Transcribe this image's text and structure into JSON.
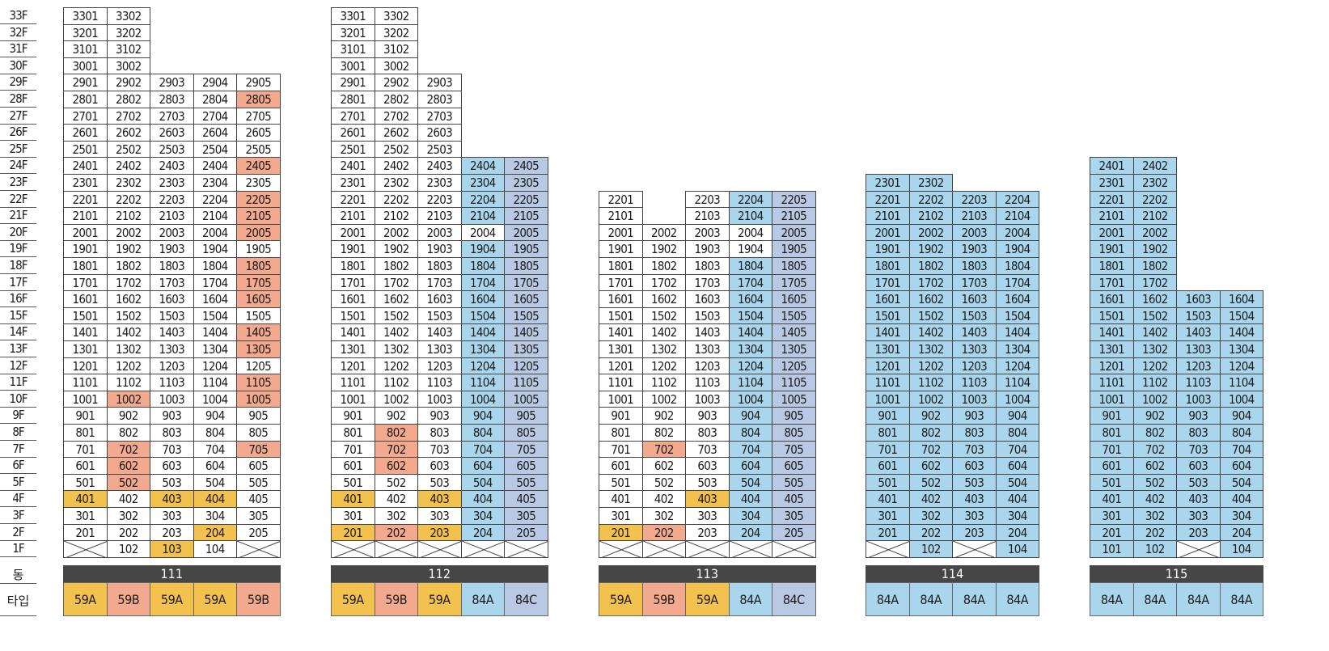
{
  "floor_labels": [
    "33F",
    "32F",
    "31F",
    "30F",
    "29F",
    "28F",
    "27F",
    "26F",
    "25F",
    "24F",
    "23F",
    "22F",
    "21F",
    "20F",
    "19F",
    "18F",
    "17F",
    "16F",
    "15F",
    "14F",
    "13F",
    "12F",
    "11F",
    "10F",
    "9F",
    "8F",
    "7F",
    "6F",
    "5F",
    "4F",
    "3F",
    "2F",
    "1F"
  ],
  "row_labels": {
    "building": "동",
    "type": "타입"
  },
  "colors": {
    "59A": "#f2c14e",
    "59B": "#f3a98d",
    "84A": "#a9d6ec",
    "84C": "#b9c9e3",
    "none": "#ffffff",
    "bar": "#464646"
  },
  "buildings": [
    {
      "name": "111",
      "types": [
        "59A",
        "59B",
        "59A",
        "59A",
        "59B"
      ],
      "columns": [
        {
          "min": 1,
          "max": 33
        },
        {
          "min": 1,
          "max": 33
        },
        {
          "min": 1,
          "max": 29
        },
        {
          "min": 1,
          "max": 29
        },
        {
          "min": 1,
          "max": 29
        }
      ],
      "pilotis": [
        "1-1",
        "1-5"
      ],
      "highlights": {
        "28-5": "59B",
        "24-5": "59B",
        "22-5": "59B",
        "21-5": "59B",
        "20-5": "59B",
        "18-5": "59B",
        "17-5": "59B",
        "16-5": "59B",
        "14-5": "59B",
        "13-5": "59B",
        "11-5": "59B",
        "10-5": "59B",
        "10-2": "59B",
        "7-2": "59B",
        "7-5": "59B",
        "6-2": "59B",
        "5-2": "59B",
        "4-1": "59A",
        "4-3": "59A",
        "4-4": "59A",
        "2-4": "59A",
        "1-3": "59A"
      },
      "pattern_shaded": []
    },
    {
      "name": "112",
      "types": [
        "59A",
        "59B",
        "59A",
        "84A",
        "84C"
      ],
      "columns": [
        {
          "min": 1,
          "max": 33
        },
        {
          "min": 1,
          "max": 33
        },
        {
          "min": 1,
          "max": 29
        },
        {
          "min": 1,
          "max": 24
        },
        {
          "min": 1,
          "max": 24
        }
      ],
      "pilotis": [
        "1-1",
        "1-2",
        "1-3",
        "1-4",
        "1-5"
      ],
      "highlights": {
        "8-2": "59B",
        "7-2": "59B",
        "6-2": "59B",
        "4-1": "59A",
        "4-3": "59A",
        "2-1": "59A",
        "2-2": "59B",
        "2-3": "59A"
      },
      "pattern_shaded": [],
      "shaded_skip": [
        "20-4"
      ]
    },
    {
      "name": "113",
      "types": [
        "59A",
        "59B",
        "59A",
        "84A",
        "84C"
      ],
      "columns": [
        {
          "min": 1,
          "max": 22
        },
        {
          "min": 1,
          "max": 20
        },
        {
          "min": 1,
          "max": 22
        },
        {
          "min": 1,
          "max": 22
        },
        {
          "min": 1,
          "max": 22
        }
      ],
      "pilotis": [
        "1-1",
        "1-2",
        "1-3",
        "1-4",
        "1-5"
      ],
      "highlights": {
        "7-2": "59B",
        "4-3": "59A",
        "2-1": "59A",
        "2-2": "59B"
      },
      "pattern_shaded": [],
      "shaded_skip": [
        "20-4",
        "19-4"
      ]
    },
    {
      "name": "114",
      "types": [
        "84A",
        "84A",
        "84A",
        "84A"
      ],
      "columns": [
        {
          "min": 1,
          "max": 23
        },
        {
          "min": 1,
          "max": 23
        },
        {
          "min": 1,
          "max": 22
        },
        {
          "min": 1,
          "max": 22
        }
      ],
      "pilotis": [
        "1-1",
        "1-3"
      ],
      "highlights": {},
      "pattern_shaded": []
    },
    {
      "name": "115",
      "types": [
        "84A",
        "84A",
        "84A",
        "84A"
      ],
      "columns": [
        {
          "min": 1,
          "max": 24
        },
        {
          "min": 1,
          "max": 24
        },
        {
          "min": 1,
          "max": 16
        },
        {
          "min": 1,
          "max": 16
        }
      ],
      "pilotis": [
        "1-3"
      ],
      "highlights": {},
      "pattern_shaded": []
    }
  ]
}
